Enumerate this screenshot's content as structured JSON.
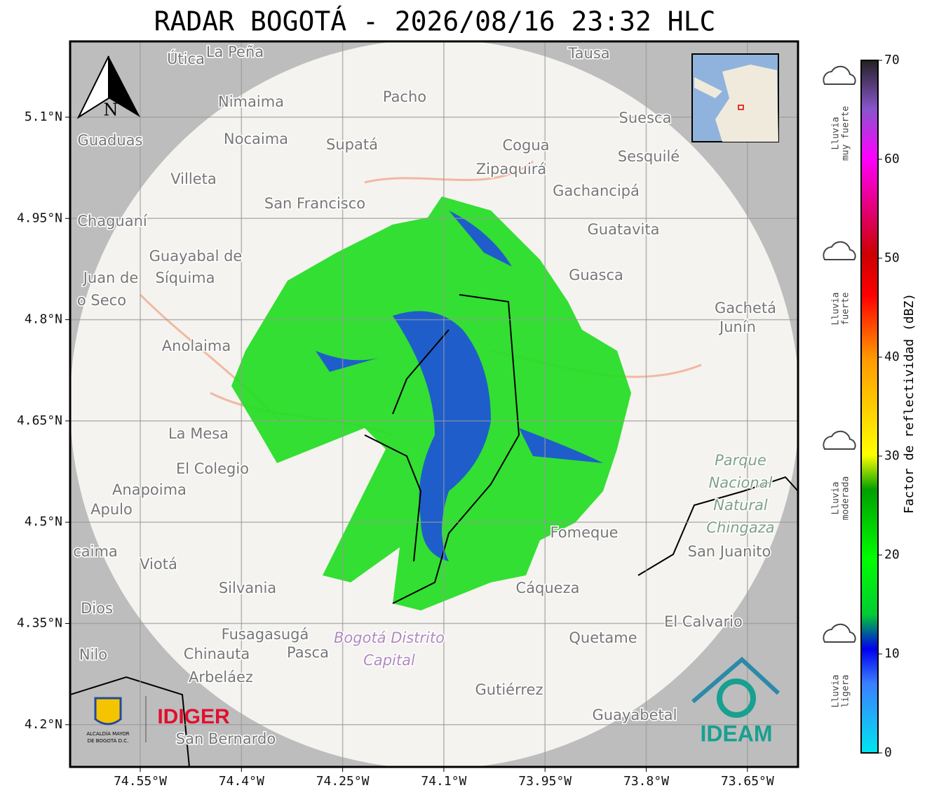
{
  "title": "RADAR BOGOTÁ - 2026/08/16 23:32 HLC",
  "map": {
    "lon_ticks": [
      {
        "value": -74.55,
        "label": "74.55°W"
      },
      {
        "value": -74.4,
        "label": "74.4°W"
      },
      {
        "value": -74.25,
        "label": "74.25°W"
      },
      {
        "value": -74.1,
        "label": "74.1°W"
      },
      {
        "value": -73.95,
        "label": "73.95°W"
      },
      {
        "value": -73.8,
        "label": "73.8°W"
      },
      {
        "value": -73.65,
        "label": "73.65°W"
      }
    ],
    "lat_ticks": [
      {
        "value": 5.1,
        "label": "5.1°N"
      },
      {
        "value": 4.95,
        "label": "4.95°N"
      },
      {
        "value": 4.8,
        "label": "4.8°N"
      },
      {
        "value": 4.65,
        "label": "4.65°N"
      },
      {
        "value": 4.5,
        "label": "4.5°N"
      },
      {
        "value": 4.35,
        "label": "4.35°N"
      },
      {
        "value": 4.2,
        "label": "4.2°N"
      }
    ],
    "places": [
      "Útica",
      "La Peña",
      "Tausa",
      "Pacho",
      "Nimaima",
      "Guaduas",
      "Nocaima",
      "Supatá",
      "Cogua",
      "Suesca",
      "Sesquilé",
      "Zipaquirá",
      "Villeta",
      "Gachancipá",
      "San Francisco",
      "Chaguaní",
      "Guatavita",
      "Guayabal de",
      "Síquima",
      "Juan de",
      "o Seco",
      "Guasca",
      "Gachetá",
      "Junín",
      "Anolaima",
      "La Mesa",
      "El Colegio",
      "Anapoima",
      "Apulo",
      "Fomeque",
      "San Juanito",
      "caima",
      "Viotá",
      "Silvania",
      "Cáqueza",
      "Dios",
      "El Calvario",
      "Fusagasugá",
      "Quetame",
      "Nilo",
      "Chinauta",
      "Pasca",
      "Arbeláez",
      "Gutiérrez",
      "Guayabetal",
      "San Bernardo"
    ],
    "protected_area": [
      "Parque",
      "Nacional",
      "Natural",
      "Chingaza"
    ],
    "district": [
      "Bogotá Distrito",
      "Capital"
    ],
    "north": "N"
  },
  "colorbar": {
    "label": "Factor de reflectividad (dBZ)",
    "lim": [
      0,
      70
    ],
    "ticks": [
      0,
      10,
      20,
      30,
      40,
      50,
      60,
      70
    ]
  },
  "rain_levels": [
    [
      "Lluvia",
      "muy fuerte"
    ],
    [
      "Lluvia",
      "fuerte"
    ],
    [
      "Lluvia",
      "moderada"
    ],
    [
      "Lluvia",
      "ligera"
    ]
  ],
  "logos": {
    "alcaldia": [
      "ALCALDÍA MAYOR",
      "DE BOGOTÁ D.C."
    ],
    "idiger": "IDIGER",
    "ideam": "IDEAM"
  }
}
